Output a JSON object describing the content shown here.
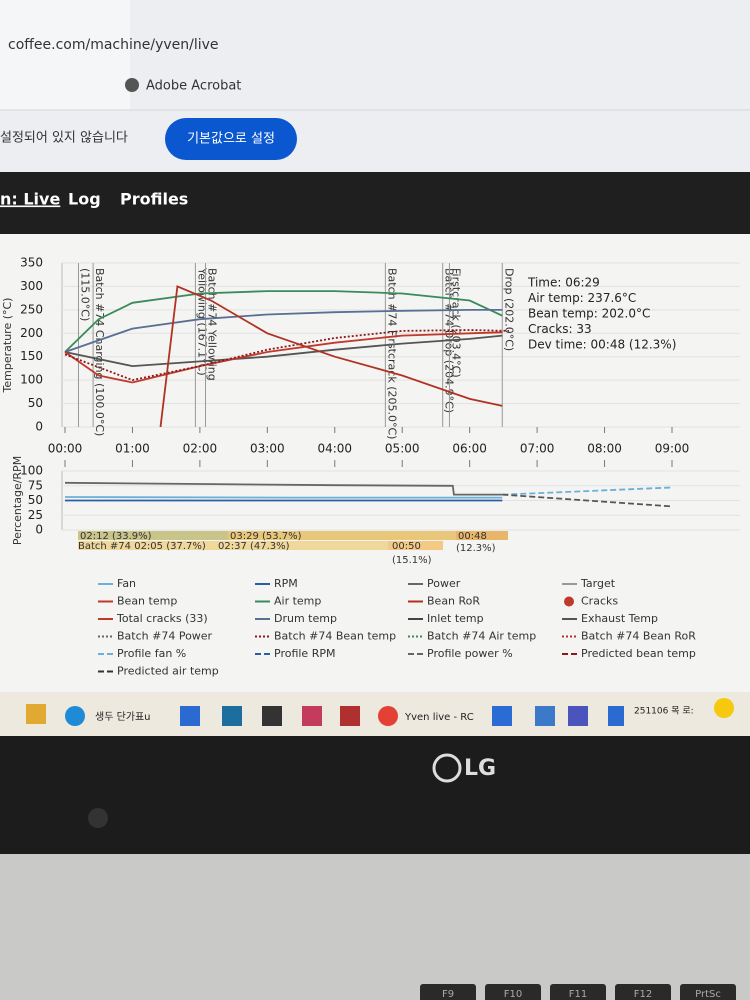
{
  "browser": {
    "url": "coffee.com/machine/yven/live",
    "bookmark": "Adobe Acrobat",
    "notice": "설정되어 있지 않습니다",
    "button": "기본값으로 설정"
  },
  "nav": [
    "n: Live",
    "Log",
    "Profiles"
  ],
  "chart_data": [
    {
      "type": "line",
      "y_label": "Temperature (°C)",
      "xlim": [
        0,
        540
      ],
      "ylim": [
        0,
        350
      ],
      "xticks": [
        {
          "value": 0,
          "label": "00:00"
        },
        {
          "value": 60,
          "label": "01:00"
        },
        {
          "value": 120,
          "label": "02:00"
        },
        {
          "value": 180,
          "label": "03:00"
        },
        {
          "value": 240,
          "label": "04:00"
        },
        {
          "value": 300,
          "label": "05:00"
        },
        {
          "value": 360,
          "label": "06:00"
        },
        {
          "value": 420,
          "label": "07:00"
        },
        {
          "value": 480,
          "label": "08:00"
        },
        {
          "value": 540,
          "label": "09:00"
        }
      ],
      "yticks": [
        0,
        50,
        100,
        150,
        200,
        250,
        300,
        350
      ],
      "series": [
        {
          "color": "#3a8a5a",
          "style": "solid",
          "x": [
            0,
            30,
            60,
            120,
            180,
            240,
            300,
            360,
            389
          ],
          "values": [
            160,
            230,
            265,
            285,
            290,
            290,
            285,
            270,
            237.6
          ]
        },
        {
          "color": "#5a6f94",
          "style": "solid",
          "x": [
            0,
            60,
            120,
            180,
            240,
            300,
            360,
            389
          ],
          "values": [
            160,
            210,
            230,
            240,
            245,
            248,
            250,
            250
          ]
        },
        {
          "color": "#555555",
          "style": "solid",
          "x": [
            0,
            60,
            120,
            180,
            240,
            300,
            360,
            389
          ],
          "values": [
            160,
            130,
            140,
            150,
            165,
            178,
            188,
            195
          ]
        },
        {
          "color": "#c0392b",
          "style": "solid",
          "x": [
            0,
            30,
            60,
            120,
            180,
            240,
            300,
            360,
            389
          ],
          "values": [
            160,
            110,
            95,
            130,
            160,
            180,
            195,
            200,
            202
          ]
        },
        {
          "color": "#8b1a1a",
          "style": "dotted",
          "x": [
            0,
            60,
            120,
            180,
            240,
            300,
            360,
            395
          ],
          "values": [
            155,
            100,
            130,
            165,
            190,
            205,
            207,
            205
          ]
        },
        {
          "color": "#b03222",
          "style": "solid",
          "x": [
            85,
            100,
            130,
            180,
            240,
            300,
            360,
            389
          ],
          "values": [
            0,
            300,
            270,
            200,
            150,
            110,
            60,
            45
          ]
        }
      ],
      "annotations": [
        {
          "x": 12,
          "text": "(115.0°C)"
        },
        {
          "x": 25,
          "text": "Batch #74 Charging (100.0°C)"
        },
        {
          "x": 116,
          "text": "Yellowing (167.1°C)"
        },
        {
          "x": 125,
          "text": "Batch #74 Yellowing"
        },
        {
          "x": 285,
          "text": "Batch #74 Firstcrack (205.0°C)"
        },
        {
          "x": 336,
          "text": "Batch #74 Drop (204.9°C)"
        },
        {
          "x": 342,
          "text": "Firstcrack (203.4°C)"
        },
        {
          "x": 389,
          "text": "Drop (202.0°C)"
        }
      ]
    },
    {
      "type": "line",
      "y_label": "Percentage/RPM",
      "xlim": [
        0,
        540
      ],
      "ylim": [
        0,
        100
      ],
      "yticks": [
        0,
        25,
        50,
        75,
        100
      ],
      "series": [
        {
          "color": "#666666",
          "style": "solid",
          "x": [
            0,
            120,
            240,
            345,
            346,
            389
          ],
          "values": [
            80,
            78,
            76,
            75,
            60,
            60
          ]
        },
        {
          "color": "#6bb0d8",
          "style": "solid",
          "x": [
            0,
            200,
            389
          ],
          "values": [
            56,
            55,
            55
          ]
        },
        {
          "color": "#2a5fa8",
          "style": "solid",
          "x": [
            0,
            200,
            389
          ],
          "values": [
            50,
            50,
            50
          ]
        },
        {
          "color": "#6bb0d8",
          "style": "dashed",
          "x": [
            389,
            540
          ],
          "values": [
            60,
            72
          ]
        },
        {
          "color": "#555555",
          "style": "dashed",
          "x": [
            389,
            540
          ],
          "values": [
            60,
            40
          ]
        }
      ]
    }
  ],
  "info": [
    "Time: 06:29",
    "Air temp: 237.6°C",
    "Bean temp: 202.0°C",
    "Cracks: 33",
    "Dev time: 00:48 (12.3%)"
  ],
  "phases": [
    "02:12 (33.9%)",
    "03:29 (53.7%)",
    "00:48",
    "Batch #74 02:05 (37.7%)",
    "02:37 (47.3%)",
    "00:50",
    "(12.3%)",
    "(15.1%)"
  ],
  "legend": [
    {
      "label": "Fan",
      "color": "#6bb0d8",
      "style": "solid"
    },
    {
      "label": "RPM",
      "color": "#2a5fa8",
      "style": "solid"
    },
    {
      "label": "Power",
      "color": "#666666",
      "style": "solid"
    },
    {
      "label": "Target",
      "color": "#999999",
      "style": "solid"
    },
    {
      "label": "Bean temp",
      "color": "#c0392b",
      "style": "solid"
    },
    {
      "label": "Air temp",
      "color": "#3a8a5a",
      "style": "solid"
    },
    {
      "label": "Bean RoR",
      "color": "#b03222",
      "style": "solid"
    },
    {
      "label": "Cracks",
      "color": "#c0392b",
      "style": "dot"
    },
    {
      "label": "Total cracks (33)",
      "color": "#c0392b",
      "style": "solid"
    },
    {
      "label": "Drum temp",
      "color": "#5a6f94",
      "style": "solid"
    },
    {
      "label": "Inlet temp",
      "color": "#444444",
      "style": "solid"
    },
    {
      "label": "Exhaust Temp",
      "color": "#555555",
      "style": "solid"
    },
    {
      "label": "Batch #74 Power",
      "color": "#666666",
      "style": "dotted"
    },
    {
      "label": "Batch #74 Bean temp",
      "color": "#8b1a1a",
      "style": "dotted"
    },
    {
      "label": "Batch #74 Air temp",
      "color": "#3a8a5a",
      "style": "dotted"
    },
    {
      "label": "Batch #74 Bean RoR",
      "color": "#b03222",
      "style": "dotted"
    },
    {
      "label": "Profile fan %",
      "color": "#6bb0d8",
      "style": "dashed"
    },
    {
      "label": "Profile RPM",
      "color": "#2a5fa8",
      "style": "dashed"
    },
    {
      "label": "Profile power %",
      "color": "#666666",
      "style": "dashed"
    },
    {
      "label": "Predicted bean temp",
      "color": "#8b1a1a",
      "style": "dashed"
    },
    {
      "label": "Predicted air temp",
      "color": "#333333",
      "style": "dashed"
    }
  ],
  "taskbar": [
    "생두 단가표u",
    "Yven live - RC",
    "251106 목 로:"
  ],
  "laptop": {
    "brand": "LG",
    "keys": [
      "F9",
      "F10",
      "F11",
      "F12",
      "PrtSc"
    ]
  }
}
